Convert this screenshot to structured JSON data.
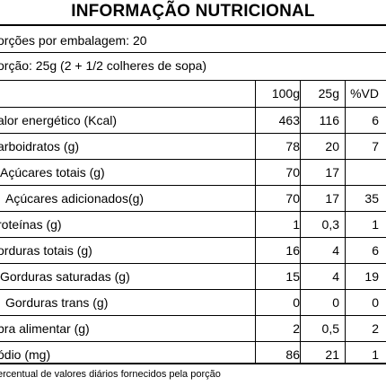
{
  "title": "INFORMAÇÃO NUTRICIONAL",
  "servings_per_package": "orções por embalagem: 20",
  "serving_size": "orção: 25g (2 + 1/2 colheres de sopa)",
  "columns": [
    "100g",
    "25g",
    "%VD"
  ],
  "rows": [
    {
      "label": "alor energético (Kcal)",
      "v100": "463",
      "v25": "116",
      "vd": "6"
    },
    {
      "label": "arboidratos (g)",
      "v100": "78",
      "v25": "20",
      "vd": "7"
    },
    {
      "label": "Açúcares totais (g)",
      "v100": "70",
      "v25": "17",
      "vd": ""
    },
    {
      "label": "Açúcares adicionados(g)",
      "v100": "70",
      "v25": "17",
      "vd": "35"
    },
    {
      "label": "roteínas (g)",
      "v100": "1",
      "v25": "0,3",
      "vd": "1"
    },
    {
      "label": "orduras totais (g)",
      "v100": "16",
      "v25": "4",
      "vd": "6"
    },
    {
      "label": "Gorduras saturadas (g)",
      "v100": "15",
      "v25": "4",
      "vd": "19"
    },
    {
      "label": "Gorduras trans (g)",
      "v100": "0",
      "v25": "0",
      "vd": "0"
    },
    {
      "label": "bra alimentar (g)",
      "v100": "2",
      "v25": "0,5",
      "vd": "2"
    },
    {
      "label": "ódio (mg)",
      "v100": "86",
      "v25": "21",
      "vd": "1"
    }
  ],
  "footnote": "ercentual de valores diários fornecidos pela porção"
}
